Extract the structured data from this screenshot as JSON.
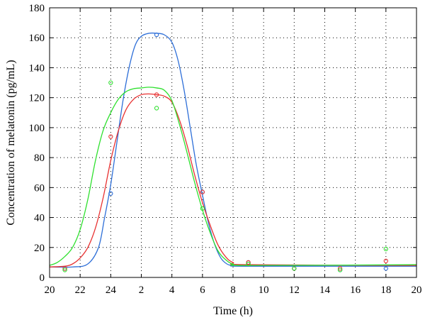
{
  "chart_data": {
    "type": "line",
    "xlabel": "Time (h)",
    "ylabel": "Concentration of melatonin (pg/mL)",
    "x_range": [
      20,
      44
    ],
    "ylim": [
      0,
      180
    ],
    "x_ticks": [
      {
        "value": 20,
        "label": "20"
      },
      {
        "value": 22,
        "label": "22"
      },
      {
        "value": 24,
        "label": "24"
      },
      {
        "value": 26,
        "label": "2"
      },
      {
        "value": 28,
        "label": "4"
      },
      {
        "value": 30,
        "label": "6"
      },
      {
        "value": 32,
        "label": "8"
      },
      {
        "value": 34,
        "label": "10"
      },
      {
        "value": 36,
        "label": "12"
      },
      {
        "value": 38,
        "label": "14"
      },
      {
        "value": 40,
        "label": "16"
      },
      {
        "value": 42,
        "label": "18"
      },
      {
        "value": 44,
        "label": "20"
      }
    ],
    "y_ticks": [
      0,
      20,
      40,
      60,
      80,
      100,
      120,
      140,
      160,
      180
    ],
    "grid": true,
    "series": [
      {
        "color": "#2e6fd8",
        "fitted_curve": [
          [
            20,
            7
          ],
          [
            21.5,
            7
          ],
          [
            22.5,
            9
          ],
          [
            23.2,
            20
          ],
          [
            23.6,
            40
          ],
          [
            24,
            62
          ],
          [
            24.4,
            90
          ],
          [
            24.8,
            118
          ],
          [
            25.2,
            140
          ],
          [
            25.6,
            155
          ],
          [
            26,
            161
          ],
          [
            26.5,
            163
          ],
          [
            27,
            163
          ],
          [
            27.5,
            162
          ],
          [
            28,
            157
          ],
          [
            28.4,
            145
          ],
          [
            28.8,
            125
          ],
          [
            29.2,
            100
          ],
          [
            29.6,
            75
          ],
          [
            30,
            55
          ],
          [
            30.4,
            36
          ],
          [
            30.8,
            22
          ],
          [
            31.2,
            13
          ],
          [
            31.6,
            9
          ],
          [
            32,
            8
          ],
          [
            33,
            7.5
          ],
          [
            44,
            7.5
          ]
        ],
        "observed": [
          {
            "x": 21,
            "y": 6
          },
          {
            "x": 24,
            "y": 56
          },
          {
            "x": 27,
            "y": 162
          },
          {
            "x": 30,
            "y": 57
          },
          {
            "x": 33,
            "y": 10
          },
          {
            "x": 36,
            "y": 6
          },
          {
            "x": 39,
            "y": 5
          },
          {
            "x": 42,
            "y": 6
          }
        ]
      },
      {
        "color": "#e83232",
        "fitted_curve": [
          [
            20,
            7
          ],
          [
            21,
            7.5
          ],
          [
            21.5,
            9
          ],
          [
            22,
            13
          ],
          [
            22.5,
            20
          ],
          [
            23,
            33
          ],
          [
            23.5,
            53
          ],
          [
            24,
            78
          ],
          [
            24.5,
            98
          ],
          [
            25,
            112
          ],
          [
            25.5,
            119
          ],
          [
            26,
            122
          ],
          [
            26.5,
            122.5
          ],
          [
            27,
            122
          ],
          [
            27.5,
            121
          ],
          [
            28,
            117
          ],
          [
            28.5,
            105
          ],
          [
            29,
            88
          ],
          [
            29.5,
            68
          ],
          [
            30,
            50
          ],
          [
            30.5,
            35
          ],
          [
            31,
            22
          ],
          [
            31.5,
            14
          ],
          [
            32,
            10
          ],
          [
            33,
            8.5
          ],
          [
            44,
            8
          ]
        ],
        "observed": [
          {
            "x": 21,
            "y": 6
          },
          {
            "x": 24,
            "y": 94
          },
          {
            "x": 27,
            "y": 122
          },
          {
            "x": 30,
            "y": 57
          },
          {
            "x": 33,
            "y": 10
          },
          {
            "x": 36,
            "y": 6
          },
          {
            "x": 39,
            "y": 6
          },
          {
            "x": 42,
            "y": 11
          }
        ]
      },
      {
        "color": "#2fe02f",
        "fitted_curve": [
          [
            20,
            8
          ],
          [
            20.5,
            10
          ],
          [
            21,
            14
          ],
          [
            21.5,
            20
          ],
          [
            22,
            32
          ],
          [
            22.5,
            52
          ],
          [
            23,
            78
          ],
          [
            23.5,
            98
          ],
          [
            24,
            110
          ],
          [
            24.5,
            119
          ],
          [
            25,
            124
          ],
          [
            25.5,
            126
          ],
          [
            26,
            126.5
          ],
          [
            26.5,
            127
          ],
          [
            27,
            126.5
          ],
          [
            27.5,
            125
          ],
          [
            28,
            118
          ],
          [
            28.5,
            102
          ],
          [
            29,
            83
          ],
          [
            29.5,
            63
          ],
          [
            30,
            45
          ],
          [
            30.5,
            30
          ],
          [
            31,
            18
          ],
          [
            31.5,
            12
          ],
          [
            32,
            9
          ],
          [
            33,
            8
          ],
          [
            44,
            8.5
          ]
        ],
        "observed": [
          {
            "x": 21,
            "y": 5
          },
          {
            "x": 24,
            "y": 130
          },
          {
            "x": 27,
            "y": 113
          },
          {
            "x": 30,
            "y": 46
          },
          {
            "x": 33,
            "y": 9
          },
          {
            "x": 36,
            "y": 6
          },
          {
            "x": 39,
            "y": 5
          },
          {
            "x": 42,
            "y": 19
          }
        ]
      }
    ]
  }
}
